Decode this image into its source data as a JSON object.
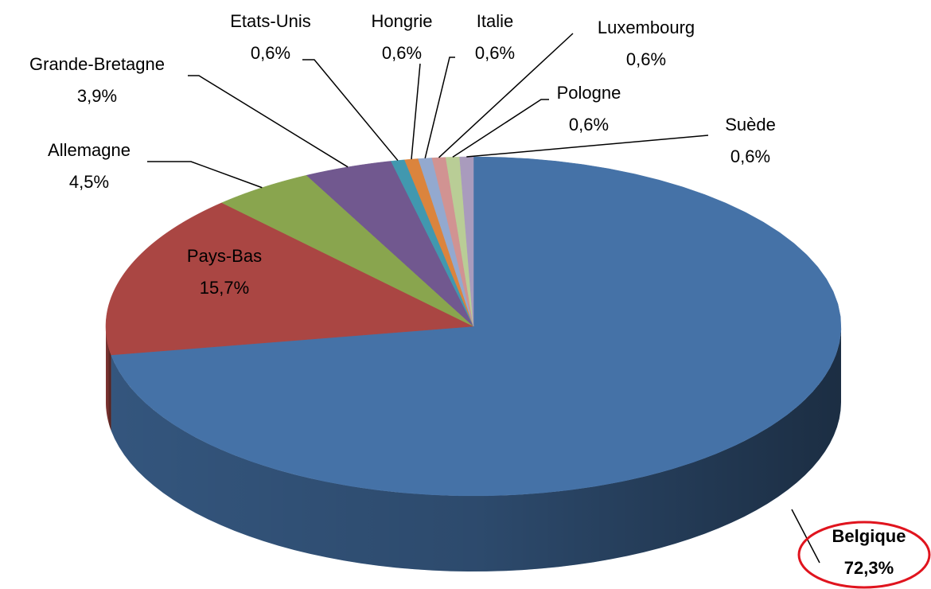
{
  "chart_data": {
    "type": "pie",
    "categories": [
      "Belgique",
      "Pays-Bas",
      "Allemagne",
      "Grande-Bretagne",
      "Etats-Unis",
      "Hongrie",
      "Italie",
      "Luxembourg",
      "Pologne",
      "Suède"
    ],
    "values": [
      72.3,
      15.7,
      4.5,
      3.9,
      0.6,
      0.6,
      0.6,
      0.6,
      0.6,
      0.6
    ],
    "value_labels": [
      "72,3%",
      "15,7%",
      "4,5%",
      "3,9%",
      "0,6%",
      "0,6%",
      "0,6%",
      "0,6%",
      "0,6%",
      "0,6%"
    ],
    "colors": [
      "#4572a7",
      "#aa4643",
      "#89a54e",
      "#71588f",
      "#4198af",
      "#db843d",
      "#93a9cf",
      "#d19392",
      "#b9cd96",
      "#a99bbd"
    ]
  }
}
